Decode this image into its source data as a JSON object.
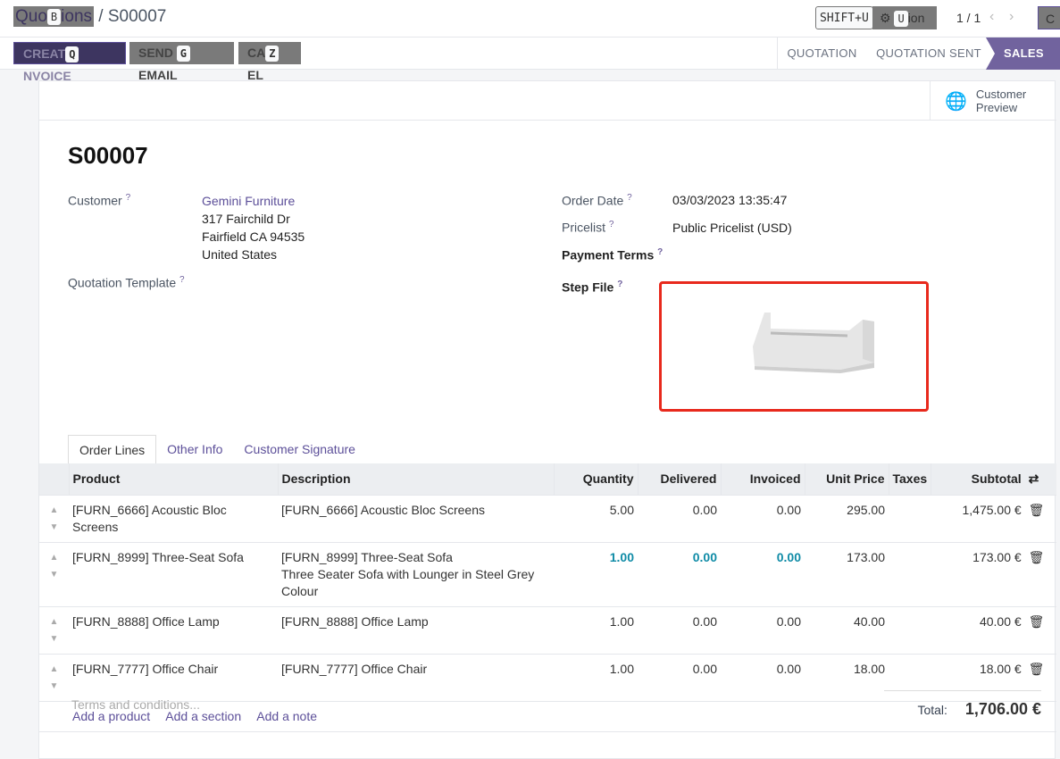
{
  "breadcrumb": {
    "parent": "Quotations",
    "parent_visible_start": "Quo",
    "parent_visible_end": "ions",
    "current": "S00007",
    "hint": "B"
  },
  "topbar": {
    "shift_hint": "SHIFT+U",
    "action_label": "Action",
    "action_hint": "U",
    "pager": "1 / 1",
    "create_partial": "C"
  },
  "buttons": {
    "create_invoice": "CREATE INVOICE",
    "create_invoice_a": "CREAT",
    "create_invoice_b": "NVOICE",
    "create_hint": "Q",
    "send_a": "SEND",
    "send_b": "EMAIL",
    "send_hint": "G",
    "cancel_a": "CA",
    "cancel_b": "EL",
    "cancel_hint": "Z"
  },
  "stages": [
    "QUOTATION",
    "QUOTATION SENT",
    "SALES ORDER"
  ],
  "customer_preview": {
    "line1": "Customer",
    "line2": "Preview"
  },
  "record": {
    "name": "S00007",
    "customer_label": "Customer",
    "customer_name": "Gemini Furniture",
    "address": [
      "317 Fairchild Dr",
      "Fairfield CA 94535",
      "United States"
    ],
    "template_label": "Quotation Template",
    "order_date_label": "Order Date",
    "order_date": "03/03/2023 13:35:47",
    "pricelist_label": "Pricelist",
    "pricelist": "Public Pricelist (USD)",
    "payment_terms_label": "Payment Terms",
    "step_file_label": "Step File",
    "help": "?"
  },
  "tabs": [
    "Order Lines",
    "Other Info",
    "Customer Signature"
  ],
  "table": {
    "headers": [
      "Product",
      "Description",
      "Quantity",
      "Delivered",
      "Invoiced",
      "Unit Price",
      "Taxes",
      "Subtotal"
    ],
    "rows": [
      {
        "product": "[FURN_6666] Acoustic Bloc Screens",
        "desc": [
          "[FURN_6666] Acoustic Bloc Screens"
        ],
        "qty": "5.00",
        "delivered": "0.00",
        "invoiced": "0.00",
        "price": "295.00",
        "taxes": "",
        "subtotal": "1,475.00 €"
      },
      {
        "product": "[FURN_8999] Three-Seat Sofa",
        "desc": [
          "[FURN_8999] Three-Seat Sofa",
          "Three Seater Sofa with Lounger in Steel Grey",
          "Colour"
        ],
        "qty": "1.00",
        "delivered": "0.00",
        "invoiced": "0.00",
        "price": "173.00",
        "taxes": "",
        "subtotal": "173.00 €"
      },
      {
        "product": "[FURN_8888] Office Lamp",
        "desc": [
          "[FURN_8888] Office Lamp"
        ],
        "qty": "1.00",
        "delivered": "0.00",
        "invoiced": "0.00",
        "price": "40.00",
        "taxes": "",
        "subtotal": "40.00 €"
      },
      {
        "product": "[FURN_7777] Office Chair",
        "desc": [
          "[FURN_7777] Office Chair"
        ],
        "qty": "1.00",
        "delivered": "0.00",
        "invoiced": "0.00",
        "price": "18.00",
        "taxes": "",
        "subtotal": "18.00 €"
      }
    ],
    "add_links": [
      "Add a product",
      "Add a section",
      "Add a note"
    ]
  },
  "footer": {
    "terms_placeholder": "Terms and conditions...",
    "total_label": "Total:",
    "total": "1,706.00 €"
  },
  "colors": {
    "brand": "#71639e",
    "highlight": "#0f8ba6",
    "step_border": "#e8291c"
  }
}
